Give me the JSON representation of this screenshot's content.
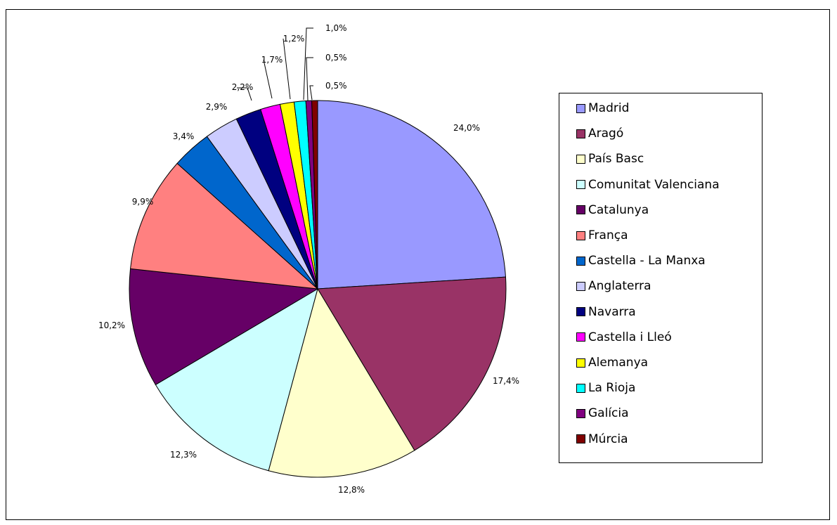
{
  "chart_data": {
    "type": "pie",
    "title": "",
    "legend_position": "right",
    "slices": [
      {
        "name": "Madrid",
        "value": 24.0,
        "label": "24,0%",
        "color": "#9999ff"
      },
      {
        "name": "Aragó",
        "value": 17.4,
        "label": "17,4%",
        "color": "#993366"
      },
      {
        "name": "País Basc",
        "value": 12.8,
        "label": "12,8%",
        "color": "#ffffcc"
      },
      {
        "name": "Comunitat Valenciana",
        "value": 12.3,
        "label": "12,3%",
        "color": "#ccffff"
      },
      {
        "name": "Catalunya",
        "value": 10.2,
        "label": "10,2%",
        "color": "#660066"
      },
      {
        "name": "França",
        "value": 9.9,
        "label": "9,9%",
        "color": "#ff8080"
      },
      {
        "name": "Castella - La Manxa",
        "value": 3.4,
        "label": "3,4%",
        "color": "#0066cc"
      },
      {
        "name": "Anglaterra",
        "value": 2.9,
        "label": "2,9%",
        "color": "#ccccff"
      },
      {
        "name": "Navarra",
        "value": 2.2,
        "label": "2,2%",
        "color": "#000080"
      },
      {
        "name": "Castella i Lleó",
        "value": 1.7,
        "label": "1,7%",
        "color": "#ff00ff"
      },
      {
        "name": "Alemanya",
        "value": 1.2,
        "label": "1,2%",
        "color": "#ffff00"
      },
      {
        "name": "La Rioja",
        "value": 1.0,
        "label": "1,0%",
        "color": "#00ffff"
      },
      {
        "name": "Galícia",
        "value": 0.5,
        "label": "0,5%",
        "color": "#800080"
      },
      {
        "name": "Múrcia",
        "value": 0.5,
        "label": "0,5%",
        "color": "#800000"
      }
    ]
  }
}
